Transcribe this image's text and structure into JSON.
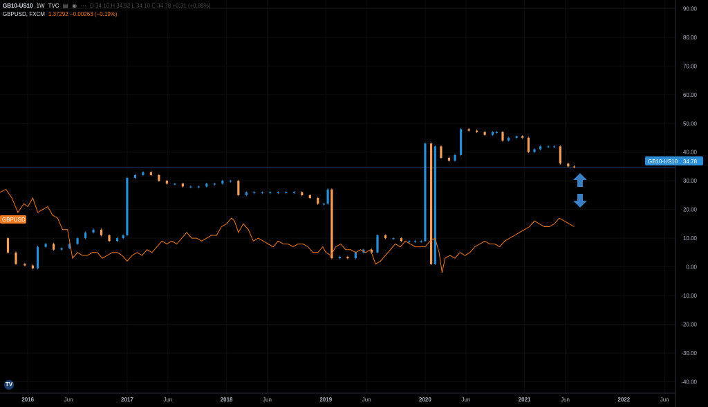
{
  "legend": {
    "symbol": "GB10-US10",
    "interval": "1W",
    "source": "TVC",
    "ohlc_text": "O 34.10  H 34.92  L 34.10  C 34.78  +0.31 (+0.89%)",
    "gbp_label": "GBPUSD, FXCM",
    "gbp_values": "1.37292  −0.00263 (−0.19%)"
  },
  "price_badge": {
    "label": "GB10-US10",
    "value": "34.78"
  },
  "left_badge": "GBPUSD",
  "icons": [
    "chart-type-icon",
    "eye-icon",
    "more-icon",
    "tradingview-logo-icon",
    "arrow-up-icon",
    "arrow-down-icon"
  ],
  "colors": {
    "up": "#2a8fd6",
    "down": "#f5a05a",
    "gbpusd": "#f07a20",
    "arrow": "#3a7fc4",
    "badge": "#2a8fd6"
  },
  "chart_data": {
    "type": "line",
    "yaxis_ticks": [
      "90.00",
      "80.00",
      "70.00",
      "60.00",
      "50.00",
      "40.00",
      "30.00",
      "20.00",
      "10.00",
      "0.00",
      "-10.00",
      "-20.00",
      "-30.00",
      "-40.00"
    ],
    "ylim": [
      -44,
      93
    ],
    "xaxis_ticks": [
      "2016",
      "Jun",
      "2017",
      "Jun",
      "2018",
      "Jun",
      "2019",
      "Jun",
      "2020",
      "Jun",
      "2021",
      "Jun",
      "2022",
      "Jun"
    ],
    "xlim": [
      2015.72,
      2022.52
    ],
    "last_value": 34.78,
    "series": [
      {
        "name": "GB10-US10",
        "style": "candles",
        "points": [
          [
            2015.72,
            10
          ],
          [
            2015.8,
            5
          ],
          [
            2015.88,
            1
          ],
          [
            2015.97,
            0.5
          ],
          [
            2016.05,
            -0.5
          ],
          [
            2016.1,
            7
          ],
          [
            2016.18,
            8
          ],
          [
            2016.26,
            6
          ],
          [
            2016.34,
            6.5
          ],
          [
            2016.42,
            8
          ],
          [
            2016.5,
            10
          ],
          [
            2016.58,
            12
          ],
          [
            2016.66,
            13
          ],
          [
            2016.74,
            11
          ],
          [
            2016.82,
            9
          ],
          [
            2016.9,
            10
          ],
          [
            2016.96,
            11
          ],
          [
            2017.0,
            31
          ],
          [
            2017.08,
            32
          ],
          [
            2017.16,
            33
          ],
          [
            2017.24,
            32
          ],
          [
            2017.32,
            30
          ],
          [
            2017.4,
            29
          ],
          [
            2017.48,
            29
          ],
          [
            2017.56,
            28
          ],
          [
            2017.64,
            28
          ],
          [
            2017.72,
            28
          ],
          [
            2017.8,
            29
          ],
          [
            2017.88,
            29
          ],
          [
            2017.96,
            30
          ],
          [
            2018.04,
            30
          ],
          [
            2018.12,
            25
          ],
          [
            2018.2,
            26
          ],
          [
            2018.28,
            26
          ],
          [
            2018.36,
            26
          ],
          [
            2018.44,
            26
          ],
          [
            2018.52,
            26
          ],
          [
            2018.6,
            26
          ],
          [
            2018.68,
            26
          ],
          [
            2018.76,
            25
          ],
          [
            2018.84,
            24
          ],
          [
            2018.92,
            22
          ],
          [
            2018.98,
            22
          ],
          [
            2019.02,
            27
          ],
          [
            2019.06,
            3
          ],
          [
            2019.14,
            3.5
          ],
          [
            2019.22,
            3
          ],
          [
            2019.3,
            5
          ],
          [
            2019.38,
            6
          ],
          [
            2019.46,
            5
          ],
          [
            2019.52,
            11
          ],
          [
            2019.6,
            10
          ],
          [
            2019.68,
            10
          ],
          [
            2019.76,
            9
          ],
          [
            2019.84,
            9
          ],
          [
            2019.9,
            9
          ],
          [
            2019.96,
            9
          ],
          [
            2020.0,
            43
          ],
          [
            2020.06,
            1
          ],
          [
            2020.1,
            42
          ],
          [
            2020.16,
            38
          ],
          [
            2020.24,
            37
          ],
          [
            2020.3,
            39
          ],
          [
            2020.36,
            48
          ],
          [
            2020.44,
            47.5
          ],
          [
            2020.52,
            47
          ],
          [
            2020.6,
            46
          ],
          [
            2020.68,
            47
          ],
          [
            2020.72,
            47
          ],
          [
            2020.78,
            44
          ],
          [
            2020.84,
            45
          ],
          [
            2020.92,
            45.5
          ],
          [
            2020.98,
            45
          ],
          [
            2021.04,
            40
          ],
          [
            2021.1,
            41
          ],
          [
            2021.16,
            42
          ],
          [
            2021.24,
            42
          ],
          [
            2021.3,
            42
          ],
          [
            2021.36,
            36
          ],
          [
            2021.44,
            35
          ],
          [
            2021.5,
            34.78
          ]
        ]
      },
      {
        "name": "GBPUSD",
        "style": "line",
        "points": [
          [
            2015.72,
            26
          ],
          [
            2015.78,
            27
          ],
          [
            2015.84,
            24
          ],
          [
            2015.9,
            19
          ],
          [
            2015.96,
            22
          ],
          [
            2016.0,
            21
          ],
          [
            2016.05,
            24
          ],
          [
            2016.1,
            19
          ],
          [
            2016.15,
            20
          ],
          [
            2016.2,
            21
          ],
          [
            2016.25,
            18
          ],
          [
            2016.3,
            17
          ],
          [
            2016.35,
            13
          ],
          [
            2016.4,
            13
          ],
          [
            2016.45,
            3
          ],
          [
            2016.5,
            5
          ],
          [
            2016.55,
            4
          ],
          [
            2016.6,
            4
          ],
          [
            2016.65,
            5
          ],
          [
            2016.7,
            5
          ],
          [
            2016.75,
            3
          ],
          [
            2016.8,
            4
          ],
          [
            2016.85,
            5
          ],
          [
            2016.9,
            5
          ],
          [
            2016.95,
            4
          ],
          [
            2017.0,
            2
          ],
          [
            2017.05,
            4
          ],
          [
            2017.1,
            5
          ],
          [
            2017.15,
            4
          ],
          [
            2017.2,
            6
          ],
          [
            2017.25,
            5
          ],
          [
            2017.3,
            7
          ],
          [
            2017.35,
            9
          ],
          [
            2017.4,
            8
          ],
          [
            2017.45,
            9
          ],
          [
            2017.5,
            8
          ],
          [
            2017.55,
            10
          ],
          [
            2017.6,
            12
          ],
          [
            2017.65,
            10
          ],
          [
            2017.7,
            10
          ],
          [
            2017.75,
            9
          ],
          [
            2017.8,
            10
          ],
          [
            2017.85,
            11
          ],
          [
            2017.9,
            11
          ],
          [
            2017.95,
            14
          ],
          [
            2018.0,
            15
          ],
          [
            2018.05,
            17
          ],
          [
            2018.08,
            16
          ],
          [
            2018.12,
            12
          ],
          [
            2018.17,
            15
          ],
          [
            2018.22,
            13
          ],
          [
            2018.27,
            9
          ],
          [
            2018.32,
            10
          ],
          [
            2018.37,
            9
          ],
          [
            2018.42,
            8
          ],
          [
            2018.47,
            7
          ],
          [
            2018.52,
            9
          ],
          [
            2018.57,
            8
          ],
          [
            2018.62,
            8
          ],
          [
            2018.67,
            7
          ],
          [
            2018.72,
            8
          ],
          [
            2018.77,
            8
          ],
          [
            2018.82,
            7
          ],
          [
            2018.87,
            5
          ],
          [
            2018.92,
            5
          ],
          [
            2018.97,
            7
          ],
          [
            2019.0,
            5
          ],
          [
            2019.05,
            4
          ],
          [
            2019.1,
            7
          ],
          [
            2019.15,
            8
          ],
          [
            2019.2,
            6
          ],
          [
            2019.25,
            6
          ],
          [
            2019.3,
            5
          ],
          [
            2019.35,
            6
          ],
          [
            2019.4,
            5
          ],
          [
            2019.45,
            6
          ],
          [
            2019.5,
            1
          ],
          [
            2019.55,
            2
          ],
          [
            2019.6,
            4
          ],
          [
            2019.65,
            6
          ],
          [
            2019.7,
            8
          ],
          [
            2019.75,
            7
          ],
          [
            2019.8,
            9
          ],
          [
            2019.85,
            8
          ],
          [
            2019.9,
            7
          ],
          [
            2019.95,
            7
          ],
          [
            2020.0,
            7
          ],
          [
            2020.05,
            9
          ],
          [
            2020.1,
            10
          ],
          [
            2020.14,
            5
          ],
          [
            2020.17,
            -2
          ],
          [
            2020.2,
            3
          ],
          [
            2020.25,
            4
          ],
          [
            2020.3,
            3
          ],
          [
            2020.35,
            5
          ],
          [
            2020.4,
            4
          ],
          [
            2020.45,
            5
          ],
          [
            2020.5,
            7
          ],
          [
            2020.55,
            8
          ],
          [
            2020.6,
            9
          ],
          [
            2020.65,
            8
          ],
          [
            2020.7,
            8
          ],
          [
            2020.75,
            7
          ],
          [
            2020.8,
            9
          ],
          [
            2020.85,
            10
          ],
          [
            2020.9,
            11
          ],
          [
            2020.95,
            12
          ],
          [
            2021.0,
            13
          ],
          [
            2021.05,
            14
          ],
          [
            2021.1,
            16
          ],
          [
            2021.15,
            15
          ],
          [
            2021.2,
            14
          ],
          [
            2021.25,
            14
          ],
          [
            2021.3,
            15
          ],
          [
            2021.35,
            17
          ],
          [
            2021.4,
            16
          ],
          [
            2021.45,
            15
          ],
          [
            2021.5,
            14
          ]
        ]
      }
    ]
  }
}
